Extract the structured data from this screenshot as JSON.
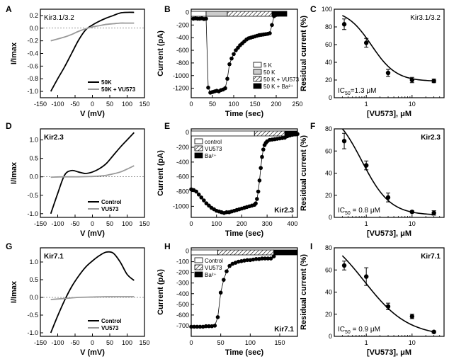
{
  "chart_data": [
    {
      "panel": "A",
      "type": "line",
      "annotation": "Kir3.1/3.2",
      "xlabel": "V (mV)",
      "ylabel": "I/Imax",
      "xlim": [
        -150,
        150
      ],
      "ylim": [
        -1.1,
        0.3
      ],
      "xticks": [
        "-150",
        "-100",
        "-50",
        "0",
        "50",
        "100",
        "150"
      ],
      "yticks": [
        "-1.0",
        "-0.8",
        "-0.6",
        "-0.4",
        "-0.2",
        "0.0",
        "0.2"
      ],
      "legend_position": "bottom-right",
      "series": [
        {
          "name": "50K",
          "color": "#000000",
          "x": [
            -120,
            -100,
            -80,
            -60,
            -40,
            -20,
            0,
            20,
            40,
            60,
            80,
            100,
            120
          ],
          "y": [
            -1.0,
            -0.8,
            -0.61,
            -0.4,
            -0.19,
            -0.03,
            0.05,
            0.11,
            0.16,
            0.2,
            0.24,
            0.25,
            0.25
          ]
        },
        {
          "name": "50K + VU573",
          "color": "#999999",
          "x": [
            -120,
            -100,
            -80,
            -60,
            -40,
            -20,
            0,
            20,
            40,
            60,
            80,
            100,
            120
          ],
          "y": [
            -0.2,
            -0.17,
            -0.14,
            -0.1,
            -0.05,
            -0.01,
            0.02,
            0.04,
            0.06,
            0.07,
            0.08,
            0.08,
            0.08
          ]
        }
      ]
    },
    {
      "panel": "B",
      "type": "scatter",
      "xlabel": "Time (sec)",
      "ylabel": "Current (pA)",
      "xlim": [
        0,
        250
      ],
      "ylim": [
        -1350,
        50
      ],
      "xticks": [
        "0",
        "50",
        "100",
        "150",
        "200",
        "250"
      ],
      "yticks": [
        "0",
        "-200",
        "-400",
        "-600",
        "-800",
        "-1000",
        "-1200"
      ],
      "legend_position": "bottom-right",
      "conditions": [
        {
          "name": "5 K",
          "pattern": "white",
          "start": 0,
          "end": 35
        },
        {
          "name": "50 K",
          "pattern": "lightgray",
          "start": 35,
          "end": 85
        },
        {
          "name": "50 K + VU573",
          "pattern": "hatched",
          "start": 85,
          "end": 190
        },
        {
          "name": "50 K + Ba²⁺",
          "pattern": "black",
          "start": 190,
          "end": 225
        }
      ],
      "series": [
        {
          "x": [
            5,
            10,
            15,
            20,
            25,
            30,
            35,
            40,
            45,
            50,
            55,
            60,
            65,
            70,
            75,
            80,
            85,
            90,
            95,
            100,
            105,
            110,
            115,
            120,
            125,
            130,
            135,
            140,
            145,
            150,
            155,
            160,
            165,
            170,
            175,
            180,
            185,
            190,
            195,
            200,
            205,
            210,
            215,
            220
          ],
          "y": [
            -100,
            -95,
            -100,
            -100,
            -95,
            -105,
            -100,
            -1190,
            -1270,
            -1260,
            -1250,
            -1240,
            -1250,
            -1230,
            -1220,
            -1200,
            -1050,
            -820,
            -730,
            -660,
            -600,
            -560,
            -520,
            -490,
            -460,
            -430,
            -410,
            -400,
            -390,
            -380,
            -370,
            -360,
            -355,
            -350,
            -345,
            -340,
            -330,
            -200,
            -60,
            -40,
            -35,
            -30,
            -30,
            -30
          ]
        }
      ]
    },
    {
      "panel": "C",
      "type": "scatter",
      "annotation": "Kir3.1/3.2",
      "xlabel": "[VU573], μM",
      "ylabel": "Residual current (%)",
      "xscale": "log",
      "xlim": [
        0.2,
        50
      ],
      "ylim": [
        0,
        100
      ],
      "xticks": [
        "1",
        "10"
      ],
      "yticks": [
        "0",
        "20",
        "40",
        "60",
        "80",
        "100"
      ],
      "ic50_label": "IC",
      "ic50_value": "=1.3 μM",
      "series": [
        {
          "x": [
            0.33,
            1,
            3,
            10,
            30
          ],
          "y": [
            83,
            62,
            28,
            20,
            19
          ],
          "err": [
            6,
            5,
            4,
            3,
            2
          ]
        }
      ],
      "fit": {
        "model": "hill",
        "ic50": 1.3,
        "top": 100,
        "bottom": 18.5,
        "hill": 1.6
      }
    },
    {
      "panel": "D",
      "type": "line",
      "annotation": "Kir2.3",
      "xlabel": "V (mV)",
      "ylabel": "I/Imax",
      "xlim": [
        -150,
        150
      ],
      "ylim": [
        -1.1,
        1.3
      ],
      "xticks": [
        "-150",
        "-100",
        "-50",
        "0",
        "50",
        "100",
        "150"
      ],
      "yticks": [
        "-1.0",
        "-0.5",
        "0.0",
        "0.5",
        "1.0"
      ],
      "legend_position": "bottom-right",
      "series": [
        {
          "name": "Control",
          "color": "#000000",
          "x": [
            -120,
            -100,
            -80,
            -60,
            -40,
            -20,
            0,
            20,
            40,
            60,
            80,
            100,
            120
          ],
          "y": [
            -1.0,
            -0.45,
            0.05,
            0.17,
            0.13,
            0.09,
            0.13,
            0.22,
            0.36,
            0.58,
            0.8,
            1.0,
            1.2
          ]
        },
        {
          "name": "VU573",
          "color": "#999999",
          "x": [
            -120,
            -80,
            -40,
            0,
            20,
            40,
            60,
            80,
            100,
            120
          ],
          "y": [
            -0.01,
            0.0,
            0.0,
            0.01,
            0.02,
            0.04,
            0.08,
            0.13,
            0.21,
            0.3
          ]
        }
      ]
    },
    {
      "panel": "E",
      "type": "scatter",
      "annotation": "Kir2.3",
      "xlabel": "Time (sec)",
      "ylabel": "Current (pA)",
      "xlim": [
        0,
        420
      ],
      "ylim": [
        -1150,
        50
      ],
      "xticks": [
        "0",
        "100",
        "200",
        "300",
        "400"
      ],
      "yticks": [
        "0",
        "-200",
        "-400",
        "-600",
        "-800",
        "-1000"
      ],
      "legend_position": "top-left",
      "conditions": [
        {
          "name": "control",
          "pattern": "white",
          "start": 0,
          "end": 250
        },
        {
          "name": "VU573",
          "pattern": "hatched",
          "start": 250,
          "end": 370
        },
        {
          "name": "Ba²⁺",
          "pattern": "black",
          "start": 370,
          "end": 420
        }
      ],
      "series": [
        {
          "x": [
            0,
            10,
            20,
            30,
            40,
            50,
            60,
            70,
            80,
            90,
            100,
            110,
            120,
            130,
            140,
            150,
            160,
            170,
            180,
            190,
            200,
            210,
            220,
            230,
            240,
            250,
            255,
            260,
            265,
            270,
            275,
            280,
            285,
            290,
            295,
            300,
            310,
            320,
            330,
            340,
            350,
            360,
            370,
            380,
            390,
            400,
            410,
            420
          ],
          "y": [
            -770,
            -780,
            -800,
            -840,
            -880,
            -920,
            -960,
            -990,
            -1020,
            -1040,
            -1060,
            -1070,
            -1080,
            -1090,
            -1080,
            -1080,
            -1070,
            -1060,
            -1050,
            -1040,
            -1030,
            -1020,
            -1010,
            -1000,
            -990,
            -980,
            -960,
            -900,
            -800,
            -650,
            -480,
            -330,
            -230,
            -170,
            -140,
            -120,
            -100,
            -95,
            -90,
            -85,
            -80,
            -75,
            -70,
            -50,
            -40,
            -30,
            -25,
            -20
          ]
        }
      ]
    },
    {
      "panel": "F",
      "type": "scatter",
      "annotation": "Kir2.3",
      "xlabel": "[VU573], μM",
      "ylabel": "Residual current (%)",
      "xscale": "log",
      "xlim": [
        0.2,
        50
      ],
      "ylim": [
        0,
        80
      ],
      "xticks": [
        "1",
        "10"
      ],
      "yticks": [
        "0",
        "20",
        "40",
        "60",
        "80"
      ],
      "ic50_label": "IC",
      "ic50_value": " = 0.8 μM",
      "series": [
        {
          "x": [
            0.33,
            1,
            3,
            10,
            30
          ],
          "y": [
            69,
            47,
            18,
            5,
            4
          ],
          "err": [
            7,
            4,
            4,
            1,
            2
          ]
        }
      ],
      "fit": {
        "model": "hill",
        "ic50": 0.8,
        "top": 100,
        "bottom": 2,
        "hill": 1.4
      }
    },
    {
      "panel": "G",
      "type": "line",
      "annotation": "Kir7.1",
      "xlabel": "V (mV)",
      "ylabel": "I/Imax",
      "xlim": [
        -150,
        150
      ],
      "ylim": [
        -1.1,
        1.4
      ],
      "xticks": [
        "-150",
        "-100",
        "-50",
        "0",
        "50",
        "100",
        "150"
      ],
      "yticks": [
        "-1.0",
        "-0.5",
        "0.0",
        "0.5",
        "1.0"
      ],
      "legend_position": "bottom-right",
      "series": [
        {
          "name": "Control",
          "color": "#000000",
          "x": [
            -120,
            -100,
            -80,
            -60,
            -40,
            -20,
            0,
            20,
            40,
            60,
            80,
            100,
            120
          ],
          "y": [
            -1.0,
            -0.52,
            -0.08,
            0.3,
            0.6,
            0.85,
            1.03,
            1.18,
            1.28,
            1.25,
            1.0,
            0.65,
            0.48
          ]
        },
        {
          "name": "VU573",
          "color": "#999999",
          "x": [
            -120,
            -80,
            -40,
            0,
            40,
            80,
            120
          ],
          "y": [
            -0.06,
            -0.03,
            0.0,
            0.01,
            0.02,
            0.02,
            0.02
          ]
        }
      ]
    },
    {
      "panel": "H",
      "type": "scatter",
      "annotation": "Kir7.1",
      "xlabel": "Time (sec)",
      "ylabel": "Current (pA)",
      "xlim": [
        0,
        180
      ],
      "ylim": [
        -800,
        30
      ],
      "xticks": [
        "0",
        "50",
        "100",
        "150"
      ],
      "yticks": [
        "0",
        "-100",
        "-200",
        "-300",
        "-400",
        "-500",
        "-600",
        "-700"
      ],
      "legend_position": "top-left",
      "conditions": [
        {
          "name": "Control",
          "pattern": "white",
          "start": 0,
          "end": 45
        },
        {
          "name": "VU573",
          "pattern": "hatched",
          "start": 45,
          "end": 140
        },
        {
          "name": "Ba²⁺",
          "pattern": "black",
          "start": 140,
          "end": 180
        }
      ],
      "series": [
        {
          "x": [
            0,
            5,
            10,
            15,
            20,
            25,
            30,
            35,
            40,
            45,
            50,
            55,
            60,
            65,
            70,
            75,
            80,
            85,
            90,
            95,
            100,
            105,
            110,
            115,
            120,
            125,
            130,
            135,
            140,
            145,
            150,
            155,
            160,
            165,
            170
          ],
          "y": [
            -710,
            -710,
            -710,
            -710,
            -710,
            -705,
            -705,
            -705,
            -700,
            -620,
            -390,
            -270,
            -190,
            -140,
            -120,
            -110,
            -100,
            -95,
            -90,
            -85,
            -85,
            -80,
            -75,
            -75,
            -70,
            -70,
            -70,
            -70,
            -50,
            -20,
            -15,
            -15,
            -15,
            -15,
            -15
          ]
        }
      ]
    },
    {
      "panel": "I",
      "type": "scatter",
      "annotation": "Kir7.1",
      "xlabel": "[VU573], μM",
      "ylabel": "Residual current (%)",
      "xscale": "log",
      "xlim": [
        0.2,
        50
      ],
      "ylim": [
        0,
        80
      ],
      "xticks": [
        "1",
        "10"
      ],
      "yticks": [
        "0",
        "20",
        "40",
        "60",
        "80"
      ],
      "ic50_label": "IC",
      "ic50_value": " = 0.9 μM",
      "series": [
        {
          "x": [
            0.33,
            1,
            3,
            10,
            30
          ],
          "y": [
            64,
            54,
            27,
            18,
            4
          ],
          "err": [
            4,
            8,
            3,
            2,
            1
          ]
        }
      ],
      "fit": {
        "model": "hill",
        "ic50": 0.9,
        "top": 100,
        "bottom": 0,
        "hill": 0.9
      }
    }
  ]
}
